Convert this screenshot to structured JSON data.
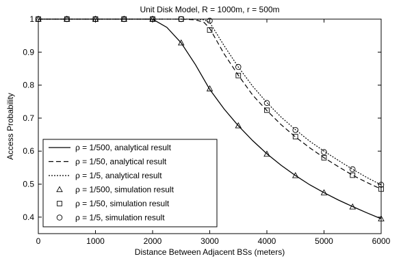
{
  "chart_data": {
    "type": "line",
    "title": "Unit Disk Model, R = 1000m, r = 500m",
    "xlabel": "Distance Between Adjacent BSs (meters)",
    "ylabel": "Access Probability",
    "xlim": [
      0,
      6000
    ],
    "ylim": [
      0.35,
      1.0
    ],
    "xticks": [
      0,
      1000,
      2000,
      3000,
      4000,
      5000,
      6000
    ],
    "yticks": [
      0.4,
      0.5,
      0.6,
      0.7,
      0.8,
      0.9,
      1
    ],
    "x_tick_labels": [
      "0",
      "1000",
      "2000",
      "3000",
      "4000",
      "5000",
      "6000"
    ],
    "y_tick_labels": [
      "0.4",
      "0.5",
      "0.6",
      "0.7",
      "0.8",
      "0.9",
      "1"
    ],
    "grid": false,
    "legend_position": "lower-left",
    "series": [
      {
        "name": "ρ = 1/500, analytical result",
        "kind": "line",
        "style": "solid",
        "x": [
          0,
          500,
          1000,
          1500,
          2000,
          2250,
          2500,
          2750,
          3000,
          3250,
          3500,
          3750,
          4000,
          4250,
          4500,
          4750,
          5000,
          5250,
          5500,
          5750,
          6000
        ],
        "y": [
          1.0,
          1.0,
          1.0,
          1.0,
          1.0,
          0.975,
          0.928,
          0.862,
          0.787,
          0.728,
          0.677,
          0.632,
          0.592,
          0.557,
          0.526,
          0.498,
          0.474,
          0.452,
          0.432,
          0.413,
          0.395
        ]
      },
      {
        "name": "ρ = 1/50, analytical result",
        "kind": "line",
        "style": "dashed",
        "x": [
          0,
          500,
          1000,
          1500,
          2000,
          2500,
          2750,
          2900,
          3000,
          3250,
          3500,
          3750,
          4000,
          4250,
          4500,
          4750,
          5000,
          5250,
          5500,
          5750,
          6000
        ],
        "y": [
          1.0,
          1.0,
          1.0,
          1.0,
          1.0,
          1.0,
          0.998,
          0.99,
          0.972,
          0.895,
          0.83,
          0.77,
          0.723,
          0.68,
          0.643,
          0.61,
          0.58,
          0.553,
          0.527,
          0.505,
          0.485
        ]
      },
      {
        "name": "ρ = 1/5, analytical result",
        "kind": "line",
        "style": "dotted",
        "x": [
          0,
          500,
          1000,
          1500,
          2000,
          2500,
          2750,
          2900,
          3000,
          3250,
          3500,
          3750,
          4000,
          4250,
          4500,
          4750,
          5000,
          5250,
          5500,
          5750,
          6000
        ],
        "y": [
          1.0,
          1.0,
          1.0,
          1.0,
          1.0,
          1.0,
          1.0,
          0.998,
          0.99,
          0.92,
          0.855,
          0.797,
          0.747,
          0.703,
          0.665,
          0.63,
          0.6,
          0.572,
          0.545,
          0.52,
          0.498
        ]
      },
      {
        "name": "ρ = 1/500, simulation result",
        "kind": "marker",
        "marker": "triangle",
        "x": [
          0,
          500,
          1000,
          1500,
          2000,
          2500,
          3000,
          3500,
          4000,
          4500,
          5000,
          5500,
          6000
        ],
        "y": [
          1.0,
          1.0,
          1.0,
          1.0,
          1.0,
          0.928,
          0.789,
          0.677,
          0.591,
          0.526,
          0.474,
          0.431,
          0.395
        ]
      },
      {
        "name": "ρ = 1/50, simulation result",
        "kind": "marker",
        "marker": "square",
        "x": [
          0,
          500,
          1000,
          1500,
          2000,
          2500,
          3000,
          3500,
          4000,
          4500,
          5000,
          5500,
          6000
        ],
        "y": [
          1.0,
          1.0,
          1.0,
          1.0,
          1.0,
          1.0,
          0.967,
          0.829,
          0.724,
          0.644,
          0.58,
          0.527,
          0.485
        ]
      },
      {
        "name": "ρ = 1/5, simulation result",
        "kind": "marker",
        "marker": "circle",
        "x": [
          0,
          500,
          1000,
          1500,
          2000,
          2500,
          3000,
          3500,
          4000,
          4500,
          5000,
          5500,
          6000
        ],
        "y": [
          1.0,
          1.0,
          1.0,
          1.0,
          1.0,
          1.0,
          0.995,
          0.855,
          0.746,
          0.664,
          0.597,
          0.545,
          0.498
        ]
      }
    ]
  }
}
